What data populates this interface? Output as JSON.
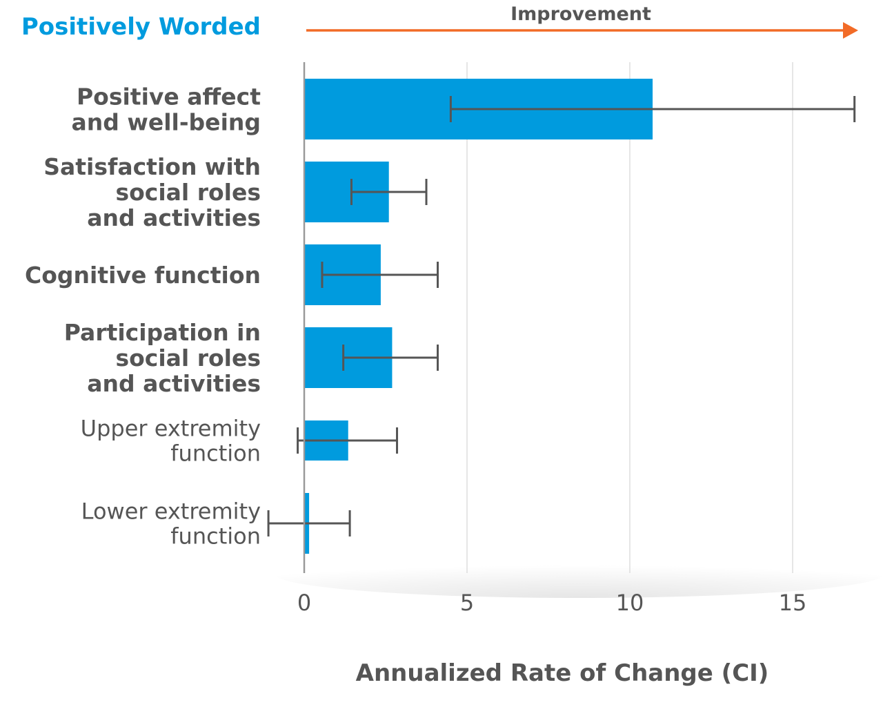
{
  "chart_data": {
    "type": "bar",
    "orientation": "horizontal",
    "title": "Positively Worded",
    "direction_label": "Improvement",
    "xlabel": "Annualized Rate of Change (CI)",
    "ylabel": "",
    "xlim": [
      0,
      17.5
    ],
    "xticks": [
      0,
      5,
      10,
      15
    ],
    "grid": true,
    "error_bars": true,
    "categories": [
      {
        "label_lines": [
          "Positive affect",
          "and well-being"
        ],
        "emphasis": "bold"
      },
      {
        "label_lines": [
          "Satisfaction with",
          "social roles",
          "and activities"
        ],
        "emphasis": "bold"
      },
      {
        "label_lines": [
          "Cognitive function"
        ],
        "emphasis": "bold"
      },
      {
        "label_lines": [
          "Participation in",
          "social roles",
          "and activities"
        ],
        "emphasis": "bold"
      },
      {
        "label_lines": [
          "Upper extremity",
          "function"
        ],
        "emphasis": "normal"
      },
      {
        "label_lines": [
          "Lower extremity",
          "function"
        ],
        "emphasis": "normal"
      }
    ],
    "values": [
      10.7,
      2.6,
      2.35,
      2.7,
      1.35,
      0.15
    ],
    "ci_low": [
      4.5,
      1.45,
      0.55,
      1.2,
      -0.2,
      -1.1
    ],
    "ci_high": [
      16.9,
      3.75,
      4.1,
      4.1,
      2.85,
      1.4
    ],
    "colors": {
      "bar": "#009BDE",
      "title": "#009BDE",
      "arrow": "#F26B27",
      "text": "#555555",
      "error_bar": "#555555",
      "grid": "#DDDDDD",
      "axis": "#999999"
    }
  }
}
